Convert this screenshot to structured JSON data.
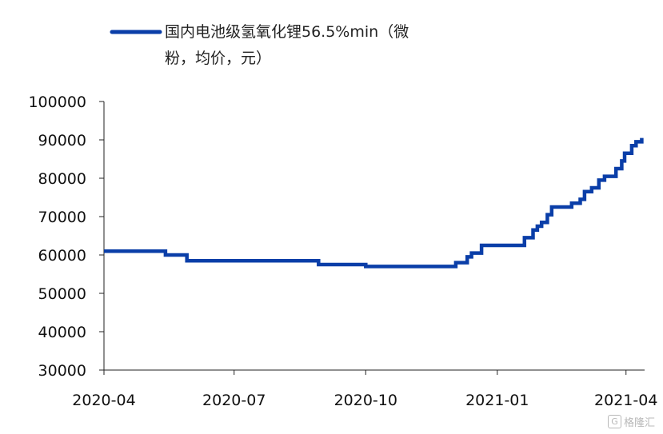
{
  "chart_data": {
    "type": "line",
    "title": "",
    "xlabel": "",
    "ylabel": "",
    "ylim": [
      30000,
      100000
    ],
    "y_ticks": [
      "100000",
      "90000",
      "80000",
      "70000",
      "60000",
      "50000",
      "40000",
      "30000"
    ],
    "x_ticks": [
      "2020-04",
      "2020-07",
      "2020-10",
      "2021-01",
      "2021-04"
    ],
    "x_range": [
      "2020-04-01",
      "2021-04-14"
    ],
    "step_line": true,
    "grid": false,
    "legend_position": "top-left",
    "series": [
      {
        "name": "国内电池级氢氧化锂56.5%min（微粉，均价，元）",
        "color": "#0a3ea8",
        "points": [
          [
            "2020-04-01",
            61000
          ],
          [
            "2020-05-13",
            61000
          ],
          [
            "2020-05-14",
            60000
          ],
          [
            "2020-05-28",
            60000
          ],
          [
            "2020-05-29",
            58500
          ],
          [
            "2020-08-28",
            58500
          ],
          [
            "2020-08-29",
            57500
          ],
          [
            "2020-09-30",
            57500
          ],
          [
            "2020-10-01",
            57000
          ],
          [
            "2020-12-02",
            57000
          ],
          [
            "2020-12-03",
            58000
          ],
          [
            "2020-12-10",
            58000
          ],
          [
            "2020-12-11",
            59500
          ],
          [
            "2020-12-14",
            60500
          ],
          [
            "2020-12-20",
            60500
          ],
          [
            "2020-12-21",
            62500
          ],
          [
            "2021-01-19",
            62500
          ],
          [
            "2021-01-20",
            64500
          ],
          [
            "2021-01-25",
            64500
          ],
          [
            "2021-01-26",
            66500
          ],
          [
            "2021-01-29",
            67500
          ],
          [
            "2021-02-01",
            68500
          ],
          [
            "2021-02-05",
            70500
          ],
          [
            "2021-02-08",
            72500
          ],
          [
            "2021-02-21",
            72500
          ],
          [
            "2021-02-22",
            73500
          ],
          [
            "2021-02-28",
            74500
          ],
          [
            "2021-03-03",
            76500
          ],
          [
            "2021-03-08",
            77500
          ],
          [
            "2021-03-13",
            79500
          ],
          [
            "2021-03-17",
            80500
          ],
          [
            "2021-03-24",
            80500
          ],
          [
            "2021-03-25",
            82500
          ],
          [
            "2021-03-29",
            84500
          ],
          [
            "2021-03-31",
            86500
          ],
          [
            "2021-04-04",
            86500
          ],
          [
            "2021-04-05",
            88500
          ],
          [
            "2021-04-08",
            89500
          ],
          [
            "2021-04-12",
            90500
          ]
        ]
      }
    ]
  },
  "watermark": {
    "glyph": "G",
    "text": "格隆汇"
  }
}
